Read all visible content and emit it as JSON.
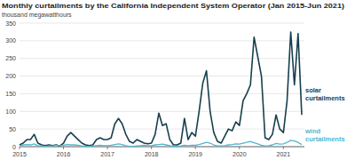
{
  "chart_data": {
    "type": "line",
    "title": "Monthly curtailments by the California Independent System Operator (Jan 2015-Jun 2021)",
    "subtitle": "thousand megawatthours",
    "categories": [
      "2015",
      null,
      null,
      null,
      null,
      null,
      null,
      null,
      null,
      null,
      null,
      null,
      "2016",
      null,
      null,
      null,
      null,
      null,
      null,
      null,
      null,
      null,
      null,
      null,
      "2017",
      null,
      null,
      null,
      null,
      null,
      null,
      null,
      null,
      null,
      null,
      null,
      "2018",
      null,
      null,
      null,
      null,
      null,
      null,
      null,
      null,
      null,
      null,
      null,
      "2019",
      null,
      null,
      null,
      null,
      null,
      null,
      null,
      null,
      null,
      null,
      null,
      "2020",
      null,
      null,
      null,
      null,
      null,
      null,
      null,
      null,
      null,
      null,
      null,
      "2021",
      null,
      null,
      null,
      null,
      null
    ],
    "series": [
      {
        "name": "solar curtailments",
        "color": "#163f4d",
        "values": [
          5,
          10,
          20,
          20,
          35,
          10,
          5,
          3,
          5,
          3,
          5,
          2,
          10,
          30,
          40,
          30,
          20,
          10,
          5,
          3,
          5,
          20,
          25,
          20,
          20,
          25,
          65,
          80,
          65,
          35,
          15,
          10,
          20,
          15,
          10,
          8,
          10,
          35,
          95,
          60,
          65,
          20,
          5,
          5,
          10,
          80,
          20,
          40,
          30,
          100,
          180,
          215,
          100,
          40,
          15,
          10,
          30,
          50,
          45,
          70,
          60,
          130,
          150,
          175,
          310,
          255,
          200,
          25,
          20,
          35,
          90,
          50,
          40,
          130,
          325,
          175,
          320,
          90
        ]
      },
      {
        "name": "wind curtailments",
        "color": "#4fb6cf",
        "values": [
          3,
          5,
          6,
          5,
          8,
          3,
          2,
          1,
          2,
          2,
          4,
          3,
          4,
          6,
          5,
          5,
          4,
          2,
          1,
          1,
          2,
          3,
          4,
          3,
          3,
          4,
          6,
          8,
          6,
          3,
          1,
          1,
          2,
          3,
          4,
          3,
          3,
          5,
          6,
          7,
          5,
          3,
          2,
          1,
          2,
          4,
          3,
          4,
          4,
          6,
          9,
          12,
          10,
          5,
          2,
          2,
          3,
          5,
          6,
          8,
          7,
          10,
          12,
          15,
          11,
          8,
          4,
          2,
          3,
          5,
          9,
          7,
          8,
          12,
          18,
          16,
          12,
          6
        ]
      }
    ],
    "ylim": [
      0,
      350
    ],
    "yticks": [
      0,
      50,
      100,
      150,
      200,
      250,
      300,
      350
    ],
    "grid": true
  }
}
